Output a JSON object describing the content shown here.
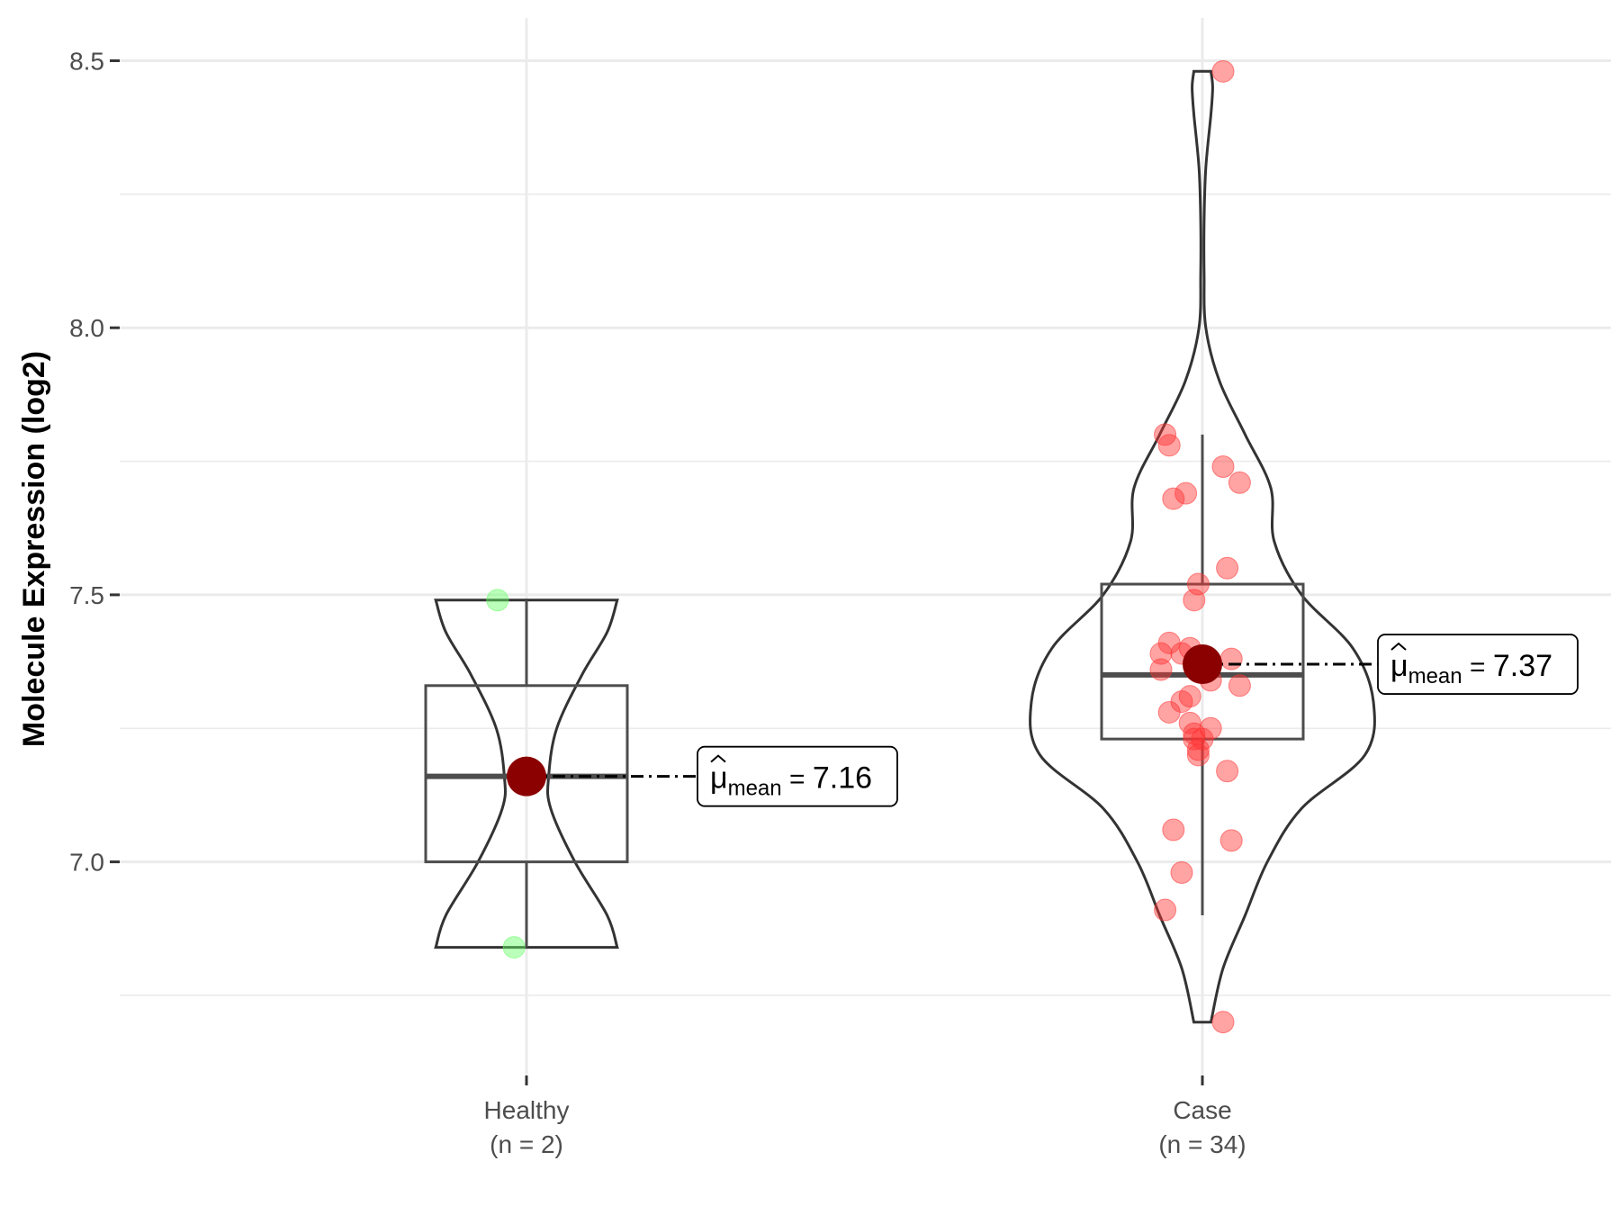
{
  "chart_data": {
    "type": "violin-box",
    "title": "",
    "xlabel": "",
    "ylabel": "Molecule Expression (log2)",
    "ylim": [
      6.6,
      8.58
    ],
    "yticks": [
      7.0,
      7.5,
      8.0,
      8.5
    ],
    "ytick_labels": [
      "7.0",
      "7.5",
      "8.0",
      "8.5"
    ],
    "grid": true,
    "legend": "none",
    "groups": [
      {
        "name": "Healthy",
        "n_label": "(n = 2)",
        "color": "#66ff66",
        "mean": 7.16,
        "mean_label": "7.16",
        "box": {
          "q1": 7.0,
          "median": 7.16,
          "q3": 7.33,
          "whisker_low": 6.84,
          "whisker_high": 7.49
        },
        "violin": {
          "y": [
            6.84,
            6.9,
            7.0,
            7.1,
            7.16,
            7.25,
            7.35,
            7.43,
            7.49
          ],
          "w": [
            0.9,
            0.8,
            0.48,
            0.24,
            0.22,
            0.3,
            0.55,
            0.8,
            0.9
          ]
        },
        "points": [
          {
            "x": -0.07,
            "y": 7.49
          },
          {
            "x": -0.03,
            "y": 6.84
          }
        ]
      },
      {
        "name": "Case",
        "n_label": "(n = 34)",
        "color": "#ff3333",
        "mean": 7.37,
        "mean_label": "7.37",
        "box": {
          "q1": 7.23,
          "median": 7.35,
          "q3": 7.52,
          "whisker_low": 6.9,
          "whisker_high": 7.8
        },
        "violin": {
          "y": [
            6.7,
            6.8,
            6.9,
            7.0,
            7.1,
            7.2,
            7.3,
            7.4,
            7.5,
            7.6,
            7.7,
            7.8,
            7.9,
            8.0,
            8.1,
            8.2,
            8.3,
            8.4,
            8.45,
            8.48
          ],
          "w": [
            0.05,
            0.12,
            0.25,
            0.38,
            0.58,
            0.95,
            1.0,
            0.88,
            0.58,
            0.42,
            0.4,
            0.25,
            0.1,
            0.02,
            0.01,
            0.01,
            0.02,
            0.05,
            0.06,
            0.05
          ]
        },
        "points": [
          {
            "x": 0.05,
            "y": 8.48
          },
          {
            "x": -0.09,
            "y": 7.8
          },
          {
            "x": -0.08,
            "y": 7.78
          },
          {
            "x": 0.05,
            "y": 7.74
          },
          {
            "x": 0.09,
            "y": 7.71
          },
          {
            "x": -0.04,
            "y": 7.69
          },
          {
            "x": -0.07,
            "y": 7.68
          },
          {
            "x": 0.06,
            "y": 7.55
          },
          {
            "x": -0.01,
            "y": 7.52
          },
          {
            "x": -0.02,
            "y": 7.49
          },
          {
            "x": -0.08,
            "y": 7.41
          },
          {
            "x": -0.03,
            "y": 7.4
          },
          {
            "x": -0.05,
            "y": 7.39
          },
          {
            "x": -0.1,
            "y": 7.39
          },
          {
            "x": 0.07,
            "y": 7.38
          },
          {
            "x": -0.1,
            "y": 7.36
          },
          {
            "x": 0.02,
            "y": 7.34
          },
          {
            "x": 0.09,
            "y": 7.33
          },
          {
            "x": -0.03,
            "y": 7.31
          },
          {
            "x": -0.05,
            "y": 7.3
          },
          {
            "x": -0.08,
            "y": 7.28
          },
          {
            "x": -0.03,
            "y": 7.26
          },
          {
            "x": 0.02,
            "y": 7.25
          },
          {
            "x": -0.02,
            "y": 7.24
          },
          {
            "x": 0.0,
            "y": 7.23
          },
          {
            "x": -0.02,
            "y": 7.23
          },
          {
            "x": -0.01,
            "y": 7.21
          },
          {
            "x": -0.01,
            "y": 7.2
          },
          {
            "x": 0.06,
            "y": 7.17
          },
          {
            "x": -0.07,
            "y": 7.06
          },
          {
            "x": 0.07,
            "y": 7.04
          },
          {
            "x": -0.05,
            "y": 6.98
          },
          {
            "x": -0.09,
            "y": 6.91
          },
          {
            "x": 0.05,
            "y": 6.7
          }
        ]
      }
    ],
    "mean_symbol": "μ",
    "mean_subscript": "mean",
    "mean_equals": "="
  }
}
